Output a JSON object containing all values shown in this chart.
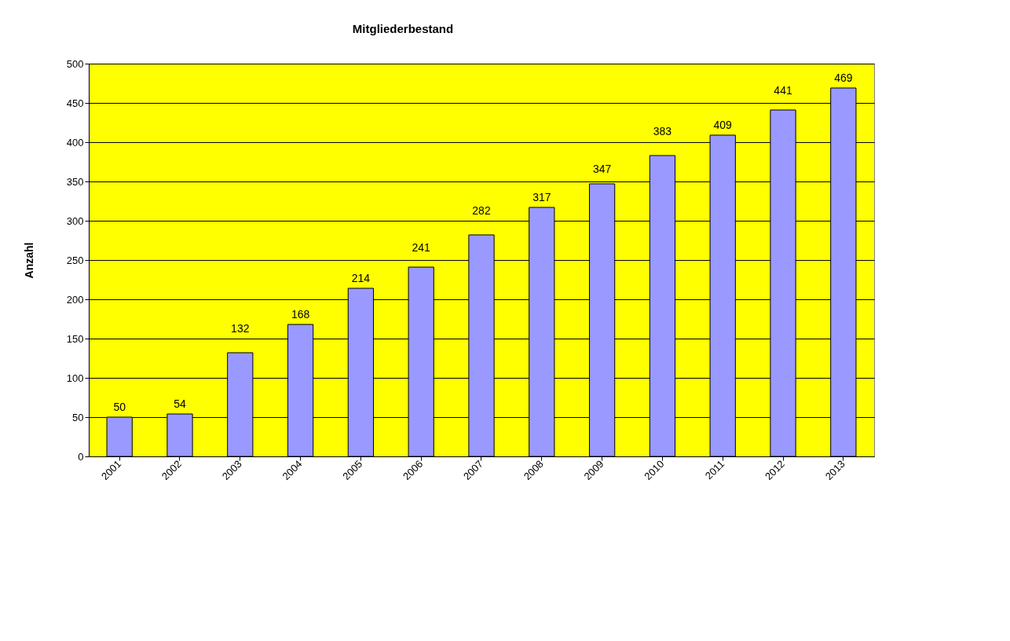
{
  "chart_data": {
    "type": "bar",
    "title": "Mitgliederbestand",
    "ylabel": "Anzahl",
    "categories": [
      "2001",
      "2002",
      "2003",
      "2004",
      "2005",
      "2006",
      "2007",
      "2008",
      "2009",
      "2010",
      "2011",
      "2012",
      "2013"
    ],
    "series": [
      {
        "color": "#9999ff",
        "values": [
          50,
          54,
          132,
          168,
          214,
          241,
          282,
          317,
          347,
          383,
          409,
          441,
          469
        ]
      }
    ],
    "ylim": [
      0,
      500
    ],
    "yticks": [
      0,
      50,
      100,
      150,
      200,
      250,
      300,
      350,
      400,
      450,
      500
    ],
    "grid": "y",
    "data_labels": true
  }
}
